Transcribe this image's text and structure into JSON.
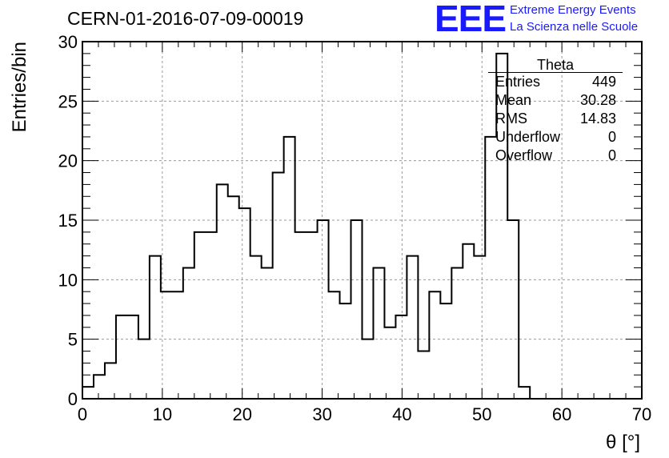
{
  "header": {
    "run_title": "CERN-01-2016-07-09-00019",
    "logo_text": "EEE",
    "logo_line1": "Extreme Energy Events",
    "logo_line2": "La Scienza nelle Scuole",
    "logo_color": "#1a1aff"
  },
  "stats_box": {
    "title": "Theta",
    "rows": [
      {
        "label": "Entries",
        "value": "449"
      },
      {
        "label": "Mean",
        "value": "30.28"
      },
      {
        "label": "RMS",
        "value": "14.83"
      },
      {
        "label": "Underflow",
        "value": "0"
      },
      {
        "label": "Overflow",
        "value": "0"
      }
    ]
  },
  "chart_data": {
    "type": "histogram",
    "title": "",
    "xlabel": "θ [°]",
    "ylabel": "Entries/bin",
    "xlim": [
      0,
      70
    ],
    "ylim": [
      0,
      30
    ],
    "x_ticks": [
      0,
      10,
      20,
      30,
      40,
      50,
      60,
      70
    ],
    "y_ticks": [
      0,
      5,
      10,
      15,
      20,
      25,
      30
    ],
    "grid": true,
    "legend": "none",
    "line_color": "#000000",
    "bin_width": 1.4,
    "bin_edges_start": 0,
    "values": [
      1,
      2,
      3,
      7,
      7,
      5,
      12,
      9,
      9,
      11,
      14,
      14,
      18,
      17,
      16,
      12,
      11,
      19,
      22,
      14,
      14,
      15,
      9,
      8,
      15,
      5,
      11,
      6,
      7,
      12,
      4,
      9,
      8,
      11,
      13,
      12,
      22,
      29,
      15,
      1,
      0,
      0,
      0,
      0,
      0,
      0,
      0,
      0,
      0,
      0
    ]
  }
}
